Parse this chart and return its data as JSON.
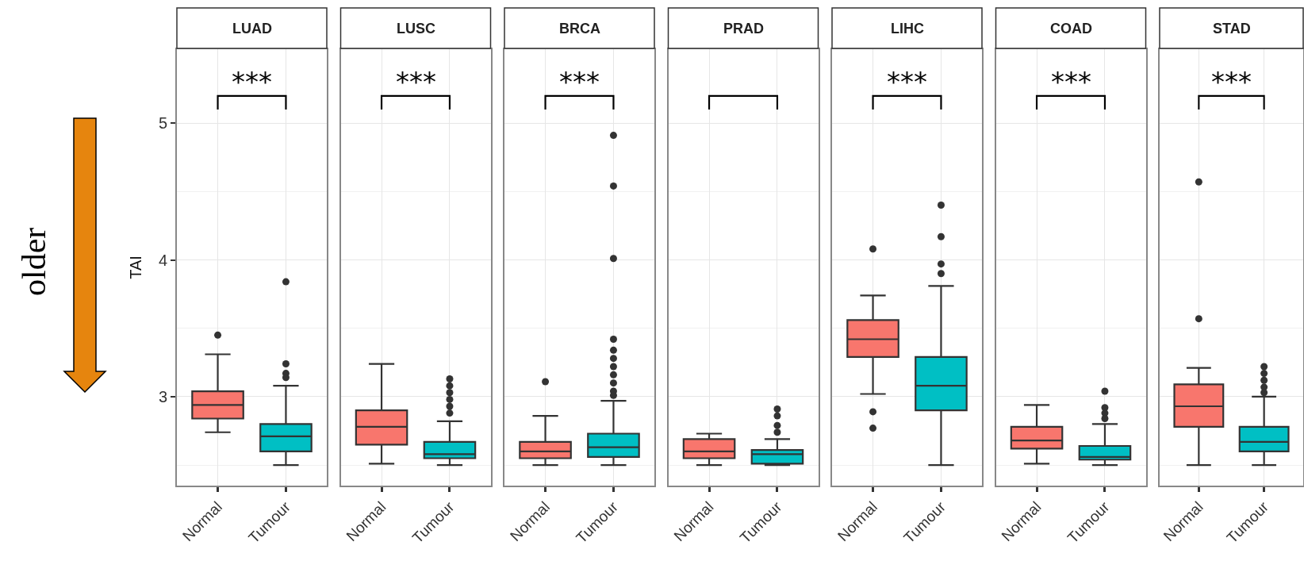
{
  "chart_data": [
    {
      "type": "box",
      "title": "LUAD",
      "ylabel": "TAI",
      "categories": [
        "Normal",
        "Tumour"
      ],
      "colors": [
        "#f8766d",
        "#00bfc4"
      ],
      "ylim": [
        2.35,
        5.54
      ],
      "yticks": [
        {
          "value": 2.5,
          "label": null
        },
        3,
        {
          "value": 3.5,
          "label": null
        },
        4,
        {
          "value": 4.5,
          "label": null
        },
        5
      ],
      "grid": true,
      "annotations": [
        "older",
        "***"
      ],
      "boxes": [
        {
          "low": 2.74,
          "q1": 2.84,
          "median": 2.94,
          "q3": 3.04,
          "high": 3.31,
          "outliers": [
            3.45
          ]
        },
        {
          "low": 2.5,
          "q1": 2.6,
          "median": 2.71,
          "q3": 2.8,
          "high": 3.08,
          "outliers": [
            3.84,
            3.24,
            3.17,
            3.14
          ]
        }
      ]
    },
    {
      "type": "box",
      "title": "LUSC",
      "categories": [
        "Normal",
        "Tumour"
      ],
      "colors": [
        "#f8766d",
        "#00bfc4"
      ],
      "ylim": [
        2.35,
        5.54
      ],
      "yticks": [
        {
          "value": 2.5,
          "label": null
        },
        3,
        {
          "value": 3.5,
          "label": null
        },
        4,
        {
          "value": 4.5,
          "label": null
        },
        5
      ],
      "grid": true,
      "tick_labels": "x",
      "annotations": [
        "***"
      ],
      "boxes": [
        {
          "low": 2.51,
          "q1": 2.65,
          "median": 2.78,
          "q3": 2.9,
          "high": 3.24
        },
        {
          "low": 2.5,
          "q1": 2.55,
          "median": 2.58,
          "q3": 2.67,
          "high": 2.82,
          "outliers": [
            3.13,
            3.08,
            3.03,
            2.98,
            2.93,
            2.88
          ]
        }
      ]
    },
    {
      "type": "box",
      "title": "BRCA",
      "categories": [
        "Normal",
        "Tumour"
      ],
      "colors": [
        "#f8766d",
        "#00bfc4"
      ],
      "ylim": [
        2.35,
        5.54
      ],
      "yticks": [
        {
          "value": 2.5,
          "label": null
        },
        3,
        {
          "value": 3.5,
          "label": null
        },
        4,
        {
          "value": 4.5,
          "label": null
        },
        5
      ],
      "grid": true,
      "tick_labels": "x",
      "annotations": [
        "***"
      ],
      "boxes": [
        {
          "low": 2.5,
          "q1": 2.55,
          "median": 2.6,
          "q3": 2.67,
          "high": 2.86,
          "outliers": [
            3.11
          ]
        },
        {
          "low": 2.5,
          "q1": 2.56,
          "median": 2.63,
          "q3": 2.73,
          "high": 2.97,
          "outliers": [
            4.91,
            4.54,
            4.01,
            3.42,
            3.34,
            3.28,
            3.22,
            3.16,
            3.1,
            3.04,
            3.01
          ]
        }
      ]
    },
    {
      "type": "box",
      "title": "PRAD",
      "categories": [
        "Normal",
        "Tumour"
      ],
      "colors": [
        "#f8766d",
        "#00bfc4"
      ],
      "ylim": [
        2.35,
        5.54
      ],
      "yticks": [
        {
          "value": 2.5,
          "label": null
        },
        3,
        {
          "value": 3.5,
          "label": null
        },
        4,
        {
          "value": 4.5,
          "label": null
        },
        5
      ],
      "grid": true,
      "tick_labels": "x",
      "boxes": [
        {
          "low": 2.5,
          "q1": 2.55,
          "median": 2.6,
          "q3": 2.69,
          "high": 2.73
        },
        {
          "low": 2.5,
          "q1": 2.51,
          "median": 2.58,
          "q3": 2.61,
          "high": 2.69,
          "outliers": [
            2.91,
            2.86,
            2.79,
            2.74
          ]
        }
      ]
    },
    {
      "type": "box",
      "title": "LIHC",
      "categories": [
        "Normal",
        "Tumour"
      ],
      "colors": [
        "#f8766d",
        "#00bfc4"
      ],
      "ylim": [
        2.35,
        5.54
      ],
      "yticks": [
        {
          "value": 2.5,
          "label": null
        },
        3,
        {
          "value": 3.5,
          "label": null
        },
        4,
        {
          "value": 4.5,
          "label": null
        },
        5
      ],
      "grid": true,
      "tick_labels": "x",
      "annotations": [
        "***"
      ],
      "boxes": [
        {
          "low": 3.02,
          "q1": 3.29,
          "median": 3.42,
          "q3": 3.56,
          "high": 3.74,
          "outliers": [
            4.08,
            2.89,
            2.77
          ]
        },
        {
          "low": 2.5,
          "q1": 2.9,
          "median": 3.08,
          "q3": 3.29,
          "high": 3.81,
          "outliers": [
            4.4,
            4.17,
            3.97,
            3.9
          ]
        }
      ]
    },
    {
      "type": "box",
      "title": "COAD",
      "categories": [
        "Normal",
        "Tumour"
      ],
      "colors": [
        "#f8766d",
        "#00bfc4"
      ],
      "ylim": [
        2.35,
        5.54
      ],
      "yticks": [
        {
          "value": 2.5,
          "label": null
        },
        3,
        {
          "value": 3.5,
          "label": null
        },
        4,
        {
          "value": 4.5,
          "label": null
        },
        5
      ],
      "grid": true,
      "tick_labels": "x",
      "annotations": [
        "***"
      ],
      "boxes": [
        {
          "low": 2.51,
          "q1": 2.62,
          "median": 2.68,
          "q3": 2.78,
          "high": 2.94
        },
        {
          "low": 2.5,
          "q1": 2.54,
          "median": 2.56,
          "q3": 2.64,
          "high": 2.8,
          "outliers": [
            3.04,
            2.92,
            2.88,
            2.84
          ]
        }
      ]
    },
    {
      "type": "box",
      "title": "STAD",
      "categories": [
        "Normal",
        "Tumour"
      ],
      "colors": [
        "#f8766d",
        "#00bfc4"
      ],
      "ylim": [
        2.35,
        5.54
      ],
      "yticks": [
        {
          "value": 2.5,
          "label": null
        },
        3,
        {
          "value": 3.5,
          "label": null
        },
        4,
        {
          "value": 4.5,
          "label": null
        },
        5
      ],
      "grid": true,
      "tick_labels": "x",
      "annotations": [
        "***"
      ],
      "boxes": [
        {
          "low": 2.5,
          "q1": 2.78,
          "median": 2.93,
          "q3": 3.09,
          "high": 3.21,
          "outliers": [
            4.57,
            3.57
          ]
        },
        {
          "low": 2.5,
          "q1": 2.6,
          "median": 2.67,
          "q3": 2.78,
          "high": 3.0,
          "outliers": [
            3.22,
            3.17,
            3.12,
            3.07,
            3.03
          ]
        }
      ]
    }
  ]
}
